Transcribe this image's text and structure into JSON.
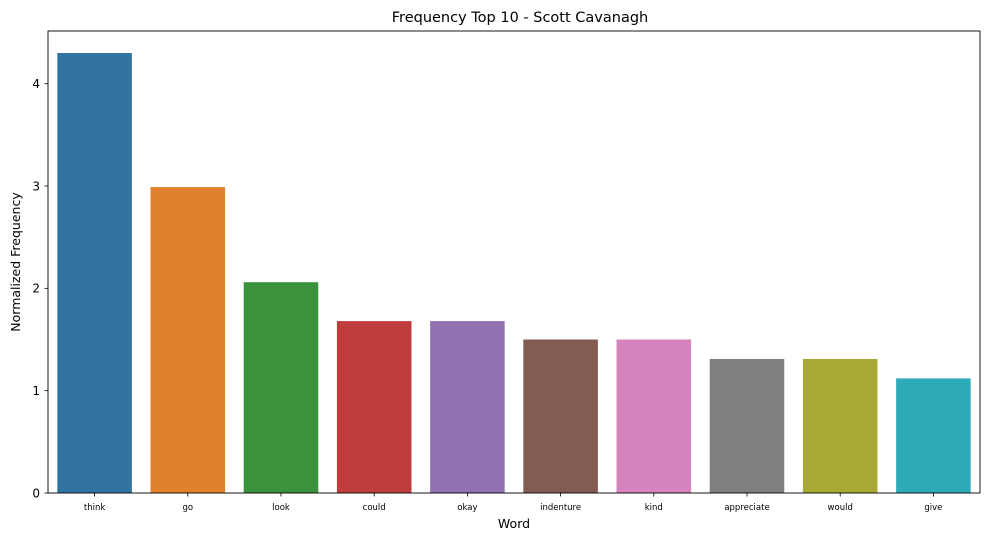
{
  "chart_data": {
    "type": "bar",
    "title": "Frequency Top 10 - Scott Cavanagh",
    "xlabel": "Word",
    "ylabel": "Normalized Frequency",
    "categories": [
      "think",
      "go",
      "look",
      "could",
      "okay",
      "indenture",
      "kind",
      "appreciate",
      "would",
      "give"
    ],
    "values": [
      4.3,
      2.99,
      2.06,
      1.68,
      1.68,
      1.5,
      1.5,
      1.31,
      1.31,
      1.12
    ],
    "colors": [
      "#3274a1",
      "#e1812c",
      "#3a923a",
      "#c03d3e",
      "#9372b2",
      "#845b53",
      "#d684bd",
      "#7f7f7f",
      "#a9aa35",
      "#2eaab8"
    ],
    "ylim": [
      0,
      4.515
    ],
    "yticks": [
      0,
      1,
      2,
      3,
      4
    ],
    "grid": false,
    "legend": "none"
  }
}
